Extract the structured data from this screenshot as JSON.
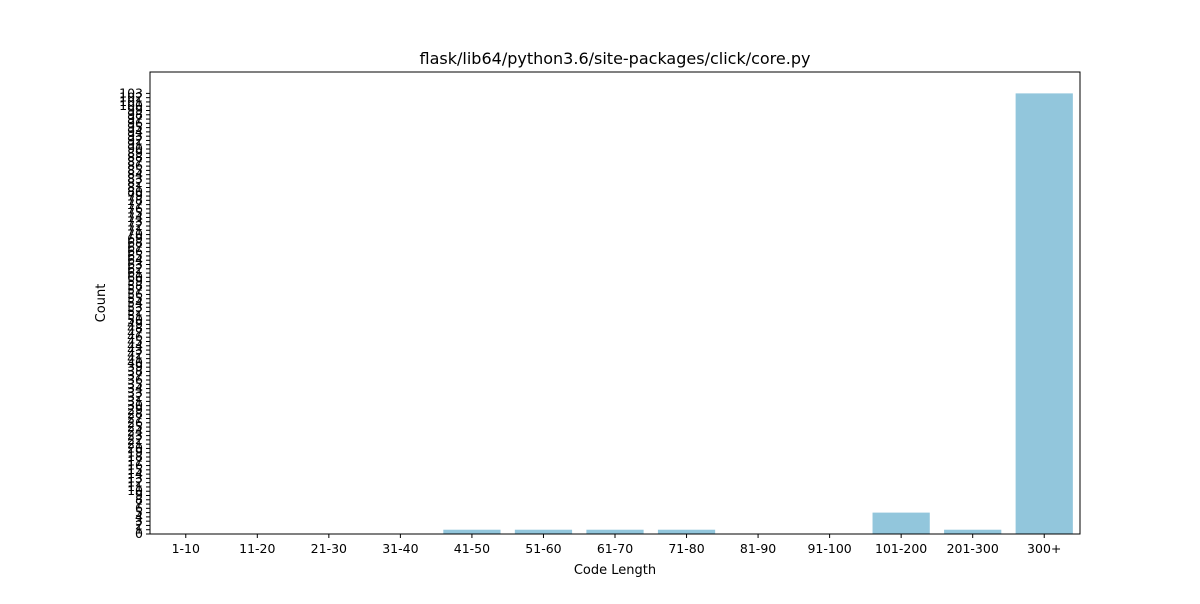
{
  "chart_data": {
    "type": "bar",
    "title": "flask/lib64/python3.6/site-packages/click/core.py",
    "xlabel": "Code Length",
    "ylabel": "Count",
    "categories": [
      "1-10",
      "11-20",
      "21-30",
      "31-40",
      "41-50",
      "51-60",
      "61-70",
      "71-80",
      "81-90",
      "91-100",
      "101-200",
      "201-300",
      "300+"
    ],
    "values": [
      0,
      0,
      0,
      0,
      1,
      1,
      1,
      1,
      0,
      0,
      5,
      1,
      103
    ],
    "ylim": [
      0,
      108
    ],
    "bar_color": "#92c6dc",
    "grid": false
  }
}
